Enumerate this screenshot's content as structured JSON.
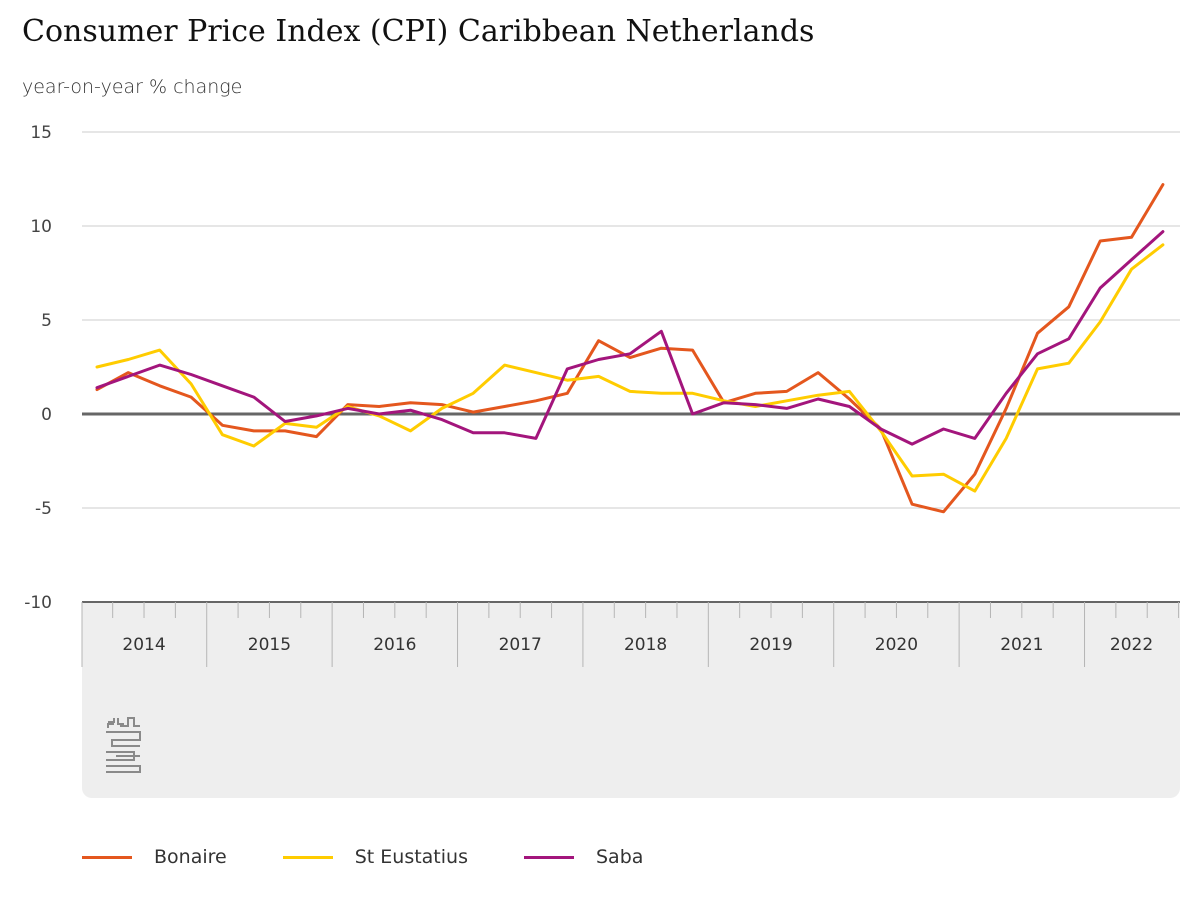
{
  "chart_data": {
    "type": "line",
    "title": "Consumer Price Index (CPI) Caribbean Netherlands",
    "subtitle": "year-on-year % change",
    "ylim": [
      -10,
      15
    ],
    "yticks": [
      15,
      10,
      5,
      0,
      -5,
      -10
    ],
    "grid": true,
    "legend_position": "bottom",
    "x_period": "quarter",
    "x_start": "2014 Q1",
    "x_end": "2022 Q3",
    "x": [
      "2014 Q1",
      "2014 Q2",
      "2014 Q3",
      "2014 Q4",
      "2015 Q1",
      "2015 Q2",
      "2015 Q3",
      "2015 Q4",
      "2016 Q1",
      "2016 Q2",
      "2016 Q3",
      "2016 Q4",
      "2017 Q1",
      "2017 Q2",
      "2017 Q3",
      "2017 Q4",
      "2018 Q1",
      "2018 Q2",
      "2018 Q3",
      "2018 Q4",
      "2019 Q1",
      "2019 Q2",
      "2019 Q3",
      "2019 Q4",
      "2020 Q1",
      "2020 Q2",
      "2020 Q3",
      "2020 Q4",
      "2021 Q1",
      "2021 Q2",
      "2021 Q3",
      "2021 Q4",
      "2022 Q1",
      "2022 Q2",
      "2022 Q3"
    ],
    "year_labels": [
      "2014",
      "2015",
      "2016",
      "2017",
      "2018",
      "2019",
      "2020",
      "2021",
      "2022"
    ],
    "series": [
      {
        "name": "Bonaire",
        "color": "#e4571e",
        "values": [
          1.3,
          2.2,
          1.5,
          0.9,
          -0.6,
          -0.9,
          -0.9,
          -1.2,
          0.5,
          0.4,
          0.6,
          0.5,
          0.1,
          0.4,
          0.7,
          1.1,
          3.9,
          3.0,
          3.5,
          3.4,
          0.6,
          1.1,
          1.2,
          2.2,
          0.8,
          -0.8,
          -4.8,
          -5.2,
          -3.2,
          0.3,
          4.3,
          5.7,
          9.2,
          9.4,
          12.2
        ]
      },
      {
        "name": "St Eustatius",
        "color": "#ffcc00",
        "values": [
          2.5,
          2.9,
          3.4,
          1.6,
          -1.1,
          -1.7,
          -0.5,
          -0.7,
          0.4,
          -0.1,
          -0.9,
          0.3,
          1.1,
          2.6,
          2.2,
          1.8,
          2.0,
          1.2,
          1.1,
          1.1,
          0.7,
          0.4,
          0.7,
          1.0,
          1.2,
          -0.9,
          -3.3,
          -3.2,
          -4.1,
          -1.3,
          2.4,
          2.7,
          4.9,
          7.7,
          9.0
        ]
      },
      {
        "name": "Saba",
        "color": "#a3157c",
        "values": [
          1.4,
          2.0,
          2.6,
          2.1,
          1.5,
          0.9,
          -0.4,
          -0.1,
          0.3,
          0.0,
          0.2,
          -0.3,
          -1.0,
          -1.0,
          -1.3,
          2.4,
          2.9,
          3.2,
          4.4,
          0.0,
          0.6,
          0.5,
          0.3,
          0.8,
          0.4,
          -0.8,
          -1.6,
          -0.8,
          -1.3,
          1.1,
          3.2,
          4.0,
          6.7,
          8.2,
          9.7
        ]
      }
    ]
  }
}
